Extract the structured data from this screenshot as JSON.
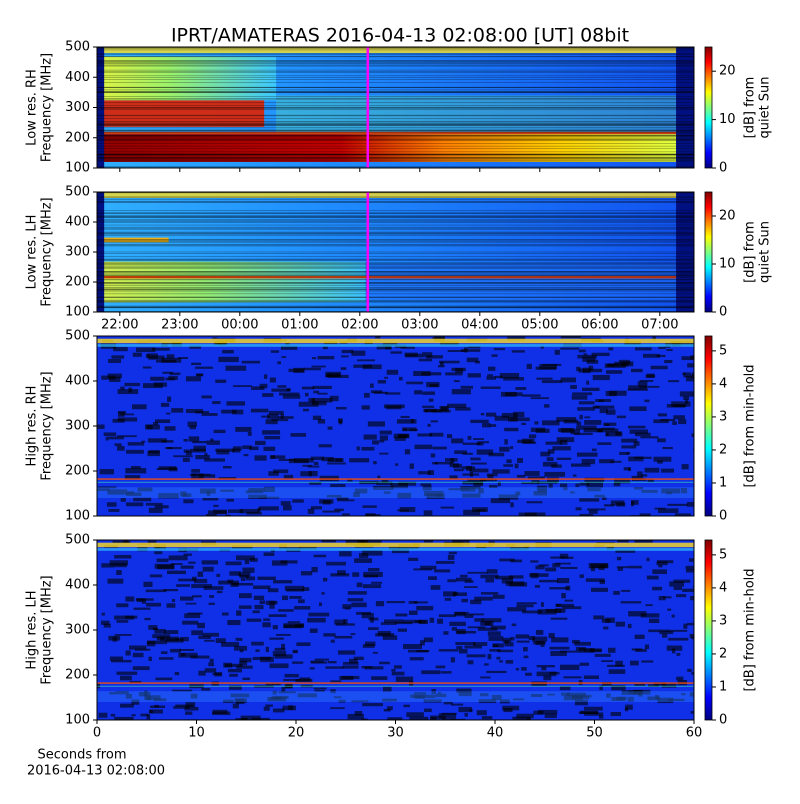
{
  "title": "IPRT/AMATERAS 2016-04-13 02:08:00 [UT]   08bit",
  "chart_data": [
    {
      "type": "heatmap",
      "ylabel": [
        "Low res. RH",
        "Frequency [MHz]"
      ],
      "ylim": [
        100,
        500
      ],
      "yticks": [
        100,
        200,
        300,
        400,
        500
      ],
      "xlim": [
        21.62,
        31.57
      ],
      "cursor": 26.133,
      "cursor_color": "#ff00ff",
      "colorbar_label": [
        "[dB] from",
        "quiet Sun"
      ],
      "clim": [
        0,
        25
      ],
      "cticks": [
        0,
        10,
        20
      ],
      "colormap": "jet"
    },
    {
      "type": "heatmap",
      "ylabel": [
        "Low res. LH",
        "Frequency [MHz]"
      ],
      "ylim": [
        100,
        500
      ],
      "yticks": [
        100,
        200,
        300,
        400,
        500
      ],
      "xlim": [
        21.62,
        31.57
      ],
      "xticks": [
        {
          "value": 22,
          "label": "22:00"
        },
        {
          "value": 23,
          "label": "23:00"
        },
        {
          "value": 24,
          "label": "00:00"
        },
        {
          "value": 25,
          "label": "01:00"
        },
        {
          "value": 26,
          "label": "02:00"
        },
        {
          "value": 27,
          "label": "03:00"
        },
        {
          "value": 28,
          "label": "04:00"
        },
        {
          "value": 29,
          "label": "05:00"
        },
        {
          "value": 30,
          "label": "06:00"
        },
        {
          "value": 31,
          "label": "07:00"
        }
      ],
      "cursor": 26.133,
      "cursor_color": "#ff00ff",
      "colorbar_label": [
        "[dB] from",
        "quiet Sun"
      ],
      "clim": [
        0,
        25
      ],
      "cticks": [
        0,
        10,
        20
      ],
      "colormap": "jet"
    },
    {
      "type": "heatmap",
      "ylabel": [
        "High res. RH",
        "Frequency [MHz]"
      ],
      "ylim": [
        100,
        500
      ],
      "yticks": [
        100,
        200,
        300,
        400,
        500
      ],
      "xlim": [
        0,
        60
      ],
      "colorbar_label": [
        "[dB] from min-hold"
      ],
      "clim": [
        0,
        5.45
      ],
      "cticks": [
        0,
        1,
        2,
        3,
        4,
        5
      ],
      "colormap": "jet"
    },
    {
      "type": "heatmap",
      "ylabel": [
        "High res. LH",
        "Frequency [MHz]"
      ],
      "ylim": [
        100,
        500
      ],
      "yticks": [
        100,
        200,
        300,
        400,
        500
      ],
      "xlim": [
        0,
        60
      ],
      "xticks": [
        0,
        10,
        20,
        30,
        40,
        50,
        60
      ],
      "xlabel": [
        "Seconds from",
        "2016-04-13 02:08:00"
      ],
      "colorbar_label": [
        "[dB] from min-hold"
      ],
      "clim": [
        0,
        5.45
      ],
      "cticks": [
        0,
        1,
        2,
        3,
        4,
        5
      ],
      "colormap": "jet"
    }
  ]
}
